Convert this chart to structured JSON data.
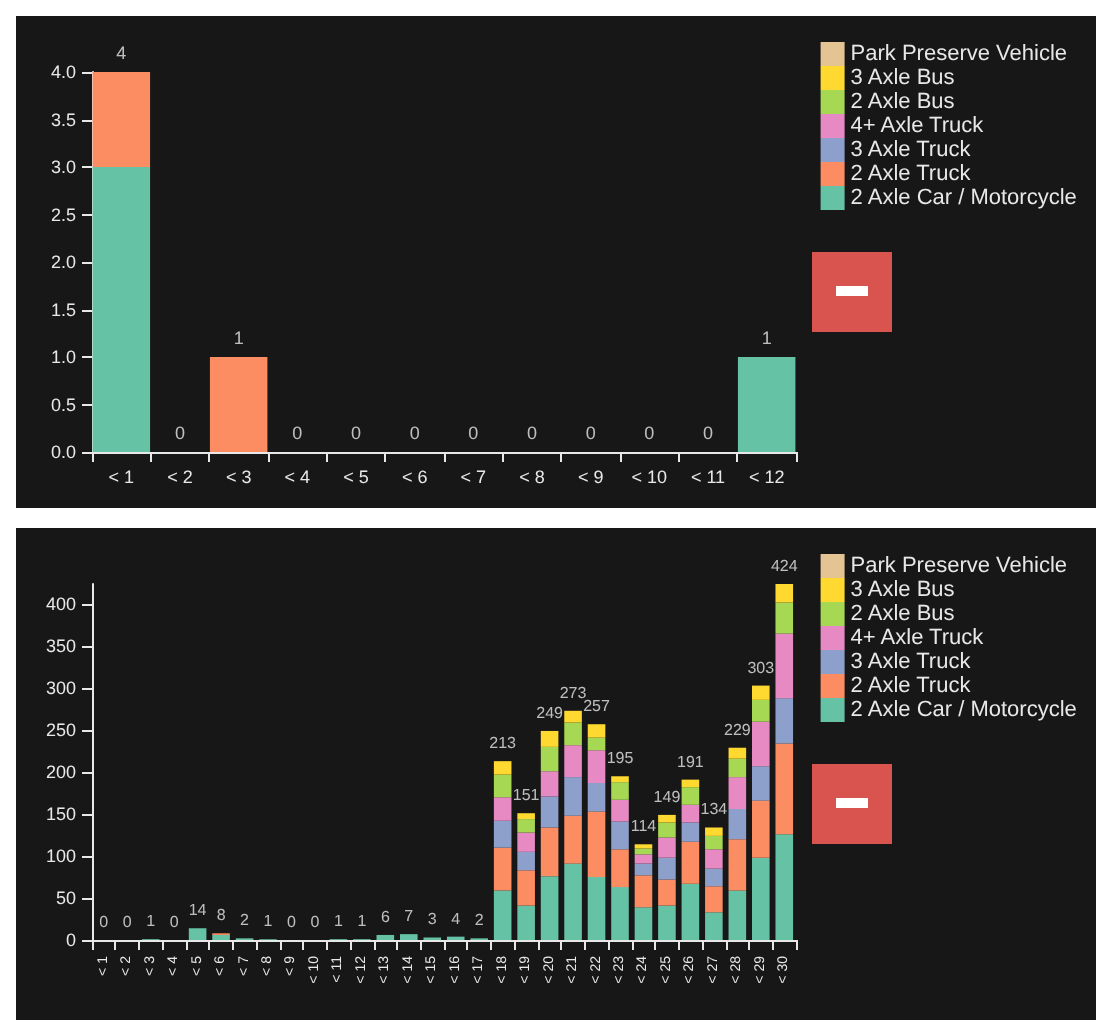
{
  "chart_data": [
    {
      "type": "bar",
      "stacked": true,
      "categories": [
        "< 1",
        "< 2",
        "< 3",
        "< 4",
        "< 5",
        "< 6",
        "< 7",
        "< 8",
        "< 9",
        "< 10",
        "< 11",
        "< 12"
      ],
      "series": [
        {
          "name": "2 Axle Car / Motorcycle",
          "color": "#66c2a5",
          "values": [
            3,
            0,
            0,
            0,
            0,
            0,
            0,
            0,
            0,
            0,
            0,
            1
          ]
        },
        {
          "name": "2 Axle Truck",
          "color": "#fc8d62",
          "values": [
            1,
            0,
            1,
            0,
            0,
            0,
            0,
            0,
            0,
            0,
            0,
            0
          ]
        },
        {
          "name": "3 Axle Truck",
          "color": "#8da0cb",
          "values": [
            0,
            0,
            0,
            0,
            0,
            0,
            0,
            0,
            0,
            0,
            0,
            0
          ]
        },
        {
          "name": "4+ Axle Truck",
          "color": "#e78ac3",
          "values": [
            0,
            0,
            0,
            0,
            0,
            0,
            0,
            0,
            0,
            0,
            0,
            0
          ]
        },
        {
          "name": "2 Axle Bus",
          "color": "#a6d854",
          "values": [
            0,
            0,
            0,
            0,
            0,
            0,
            0,
            0,
            0,
            0,
            0,
            0
          ]
        },
        {
          "name": "3 Axle Bus",
          "color": "#ffd92f",
          "values": [
            0,
            0,
            0,
            0,
            0,
            0,
            0,
            0,
            0,
            0,
            0,
            0
          ]
        },
        {
          "name": "Park Preserve Vehicle",
          "color": "#e5c494",
          "values": [
            0,
            0,
            0,
            0,
            0,
            0,
            0,
            0,
            0,
            0,
            0,
            0
          ]
        }
      ],
      "totals": [
        "4",
        "0",
        "1",
        "0",
        "0",
        "0",
        "0",
        "0",
        "0",
        "0",
        "0",
        "1"
      ],
      "ylim": [
        0,
        4
      ],
      "yticks": [
        {
          "value": 0,
          "label": "0.0"
        },
        {
          "value": 0.5,
          "label": "0.5"
        },
        {
          "value": 1,
          "label": "1.0"
        },
        {
          "value": 1.5,
          "label": "1.5"
        },
        {
          "value": 2,
          "label": "2.0"
        },
        {
          "value": 2.5,
          "label": "2.5"
        },
        {
          "value": 3,
          "label": "3.0"
        },
        {
          "value": 3.5,
          "label": "3.5"
        },
        {
          "value": 4,
          "label": "4.0"
        }
      ],
      "legend": "top right"
    },
    {
      "type": "bar",
      "stacked": true,
      "categories": [
        "< 1",
        "< 2",
        "< 3",
        "< 4",
        "< 5",
        "< 6",
        "< 7",
        "< 8",
        "< 9",
        "< 10",
        "< 11",
        "< 12",
        "< 13",
        "< 14",
        "< 15",
        "< 16",
        "< 17",
        "< 18",
        "< 19",
        "< 20",
        "< 21",
        "< 22",
        "< 23",
        "< 24",
        "< 25",
        "< 26",
        "< 27",
        "< 28",
        "< 29",
        "< 30"
      ],
      "series": [
        {
          "name": "2 Axle Car / Motorcycle",
          "color": "#66c2a5",
          "values": [
            0,
            0,
            1,
            0,
            14,
            6,
            2,
            1,
            0,
            0,
            1,
            1,
            6,
            7,
            3,
            4,
            2,
            59,
            41,
            76,
            91,
            75,
            63,
            39,
            41,
            67,
            33,
            59,
            98,
            126
          ]
        },
        {
          "name": "2 Axle Truck",
          "color": "#fc8d62",
          "values": [
            0,
            0,
            0,
            0,
            0,
            2,
            0,
            0,
            0,
            0,
            0,
            0,
            0,
            0,
            0,
            0,
            0,
            51,
            42,
            58,
            57,
            78,
            45,
            38,
            31,
            50,
            31,
            61,
            68,
            108
          ]
        },
        {
          "name": "3 Axle Truck",
          "color": "#8da0cb",
          "values": [
            0,
            0,
            0,
            0,
            0,
            0,
            0,
            0,
            0,
            0,
            0,
            0,
            0,
            0,
            0,
            0,
            0,
            32,
            22,
            37,
            46,
            34,
            33,
            14,
            26,
            23,
            21,
            36,
            41,
            54
          ]
        },
        {
          "name": "4+ Axle Truck",
          "color": "#e78ac3",
          "values": [
            0,
            0,
            0,
            0,
            0,
            0,
            0,
            0,
            0,
            0,
            0,
            0,
            0,
            0,
            0,
            0,
            0,
            28,
            23,
            30,
            38,
            39,
            26,
            11,
            24,
            21,
            23,
            38,
            53,
            77
          ]
        },
        {
          "name": "2 Axle Bus",
          "color": "#a6d854",
          "values": [
            0,
            0,
            0,
            0,
            0,
            0,
            0,
            0,
            0,
            0,
            0,
            0,
            0,
            0,
            0,
            0,
            0,
            27,
            16,
            29,
            27,
            15,
            21,
            7,
            18,
            21,
            16,
            22,
            26,
            37
          ]
        },
        {
          "name": "3 Axle Bus",
          "color": "#ffd92f",
          "values": [
            0,
            0,
            0,
            0,
            0,
            0,
            0,
            0,
            0,
            0,
            0,
            0,
            0,
            0,
            0,
            0,
            0,
            16,
            7,
            19,
            14,
            16,
            7,
            5,
            9,
            9,
            10,
            13,
            17,
            22
          ]
        },
        {
          "name": "Park Preserve Vehicle",
          "color": "#e5c494",
          "values": [
            0,
            0,
            0,
            0,
            0,
            0,
            0,
            0,
            0,
            0,
            0,
            0,
            0,
            0,
            0,
            0,
            0,
            0,
            0,
            0,
            0,
            0,
            0,
            0,
            0,
            0,
            0,
            0,
            0,
            0
          ]
        }
      ],
      "totals": [
        "0",
        "0",
        "1",
        "0",
        "14",
        "8",
        "2",
        "1",
        "0",
        "0",
        "1",
        "1",
        "6",
        "7",
        "3",
        "4",
        "2",
        "213",
        "151",
        "249",
        "273",
        "257",
        "195",
        "114",
        "149",
        "191",
        "134",
        "229",
        "303",
        "424"
      ],
      "ylim": [
        0,
        424
      ],
      "yticks": [
        0,
        50,
        100,
        150,
        200,
        250,
        300,
        350,
        400
      ],
      "legend": "top right"
    }
  ]
}
